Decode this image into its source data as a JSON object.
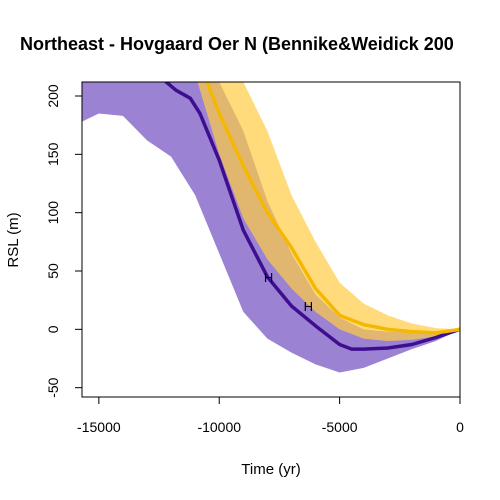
{
  "chart_data": {
    "type": "line",
    "title": "Northeast - Hovgaard Oer N (Bennike&Weidick 200",
    "xlabel": "Time (yr)",
    "ylabel": "RSL (m)",
    "xlim": [
      -15700,
      0
    ],
    "ylim": [
      -58,
      212
    ],
    "xticks": [
      -15000,
      -10000,
      -5000,
      0
    ],
    "yticks": [
      -50,
      0,
      50,
      100,
      150,
      200
    ],
    "grid": false,
    "legend": "none",
    "bands": [
      {
        "color": "#7b58c4",
        "opacity": 0.75,
        "x": [
          -15700,
          -15000,
          -14000,
          -13000,
          -12000,
          -11000,
          -10000,
          -9000,
          -8000,
          -7000,
          -6000,
          -5000,
          -4000,
          -3000,
          -2000,
          -1000,
          0
        ],
        "upper": [
          212,
          212,
          212,
          212,
          212,
          212,
          212,
          170,
          110,
          65,
          30,
          10,
          0,
          -2,
          -3,
          -3,
          0
        ],
        "lower": [
          178,
          185,
          183,
          162,
          148,
          115,
          65,
          15,
          -8,
          -20,
          -30,
          -37,
          -33,
          -25,
          -17,
          -10,
          0
        ]
      },
      {
        "color": "#ffcc44",
        "opacity": 0.7,
        "x": [
          -10900,
          -10000,
          -9000,
          -8000,
          -7000,
          -6000,
          -5000,
          -4000,
          -3000,
          -2000,
          -1000,
          0
        ],
        "upper": [
          212,
          212,
          212,
          170,
          115,
          75,
          40,
          22,
          12,
          5,
          1,
          0
        ],
        "lower": [
          212,
          150,
          95,
          60,
          35,
          15,
          0,
          -8,
          -10,
          -9,
          -6,
          0
        ]
      }
    ],
    "series": [
      {
        "color": "#3d0f8f",
        "x": [
          -12200,
          -11800,
          -11200,
          -10800,
          -10000,
          -9000,
          -8000,
          -7000,
          -6000,
          -5000,
          -4500,
          -4000,
          -3000,
          -2000,
          -1000,
          0
        ],
        "y": [
          212,
          205,
          198,
          185,
          145,
          85,
          45,
          20,
          3,
          -13,
          -17,
          -17,
          -16,
          -13,
          -7,
          0
        ]
      },
      {
        "color": "#f5b800",
        "x": [
          -10500,
          -10000,
          -9000,
          -8000,
          -7000,
          -6000,
          -5000,
          -4000,
          -3000,
          -2000,
          -1000,
          0
        ],
        "y": [
          212,
          185,
          140,
          100,
          70,
          35,
          12,
          4,
          0,
          -2,
          -3,
          0
        ]
      }
    ],
    "annotations": [
      {
        "text": "H",
        "x": -7950,
        "y": 45
      },
      {
        "text": "H",
        "x": -6300,
        "y": 20
      }
    ]
  }
}
